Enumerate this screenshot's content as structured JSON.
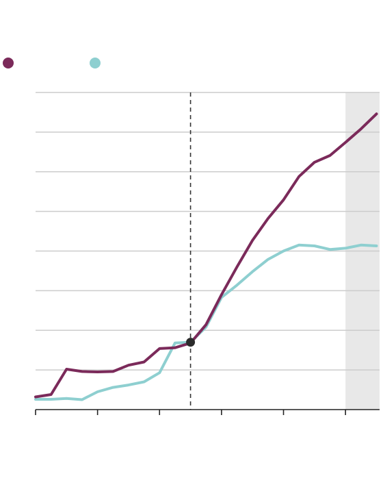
{
  "chart_data": {
    "type": "line",
    "title": "",
    "xlabel": "",
    "ylabel": "",
    "x": [
      0,
      1,
      2,
      3,
      4,
      5,
      6,
      7,
      8,
      9,
      10,
      11,
      12,
      13,
      14,
      15,
      16,
      17,
      18,
      19,
      20,
      21,
      22
    ],
    "xlim": [
      0,
      22.2
    ],
    "ylim": [
      -0.7,
      7.3
    ],
    "grid": true,
    "series": [
      {
        "name": "",
        "color": "#7b2a5a",
        "values": [
          -0.38,
          -0.32,
          0.32,
          0.26,
          0.25,
          0.26,
          0.42,
          0.5,
          0.84,
          0.86,
          0.98,
          1.44,
          2.2,
          2.9,
          3.57,
          4.12,
          4.59,
          5.18,
          5.54,
          5.71,
          6.04,
          6.38,
          6.76
        ]
      },
      {
        "name": "",
        "color": "#8ecfd0",
        "values": [
          -0.44,
          -0.44,
          -0.42,
          -0.45,
          -0.25,
          -0.14,
          -0.08,
          0.0,
          0.23,
          0.98,
          1.0,
          1.38,
          2.13,
          2.44,
          2.78,
          3.09,
          3.3,
          3.45,
          3.43,
          3.34,
          3.37,
          3.45,
          3.43
        ]
      }
    ],
    "marker": {
      "x": 10,
      "y": 1.0
    },
    "reference_line_x": 10,
    "shaded_region": {
      "x_from": 20,
      "x_to": 22.2
    },
    "gridline_values": [
      -0.7,
      0.3,
      1.3,
      2.3,
      3.3,
      4.3,
      5.3,
      6.3,
      7.3
    ],
    "tick_positions": [
      0,
      4,
      8,
      12,
      16,
      20
    ]
  }
}
